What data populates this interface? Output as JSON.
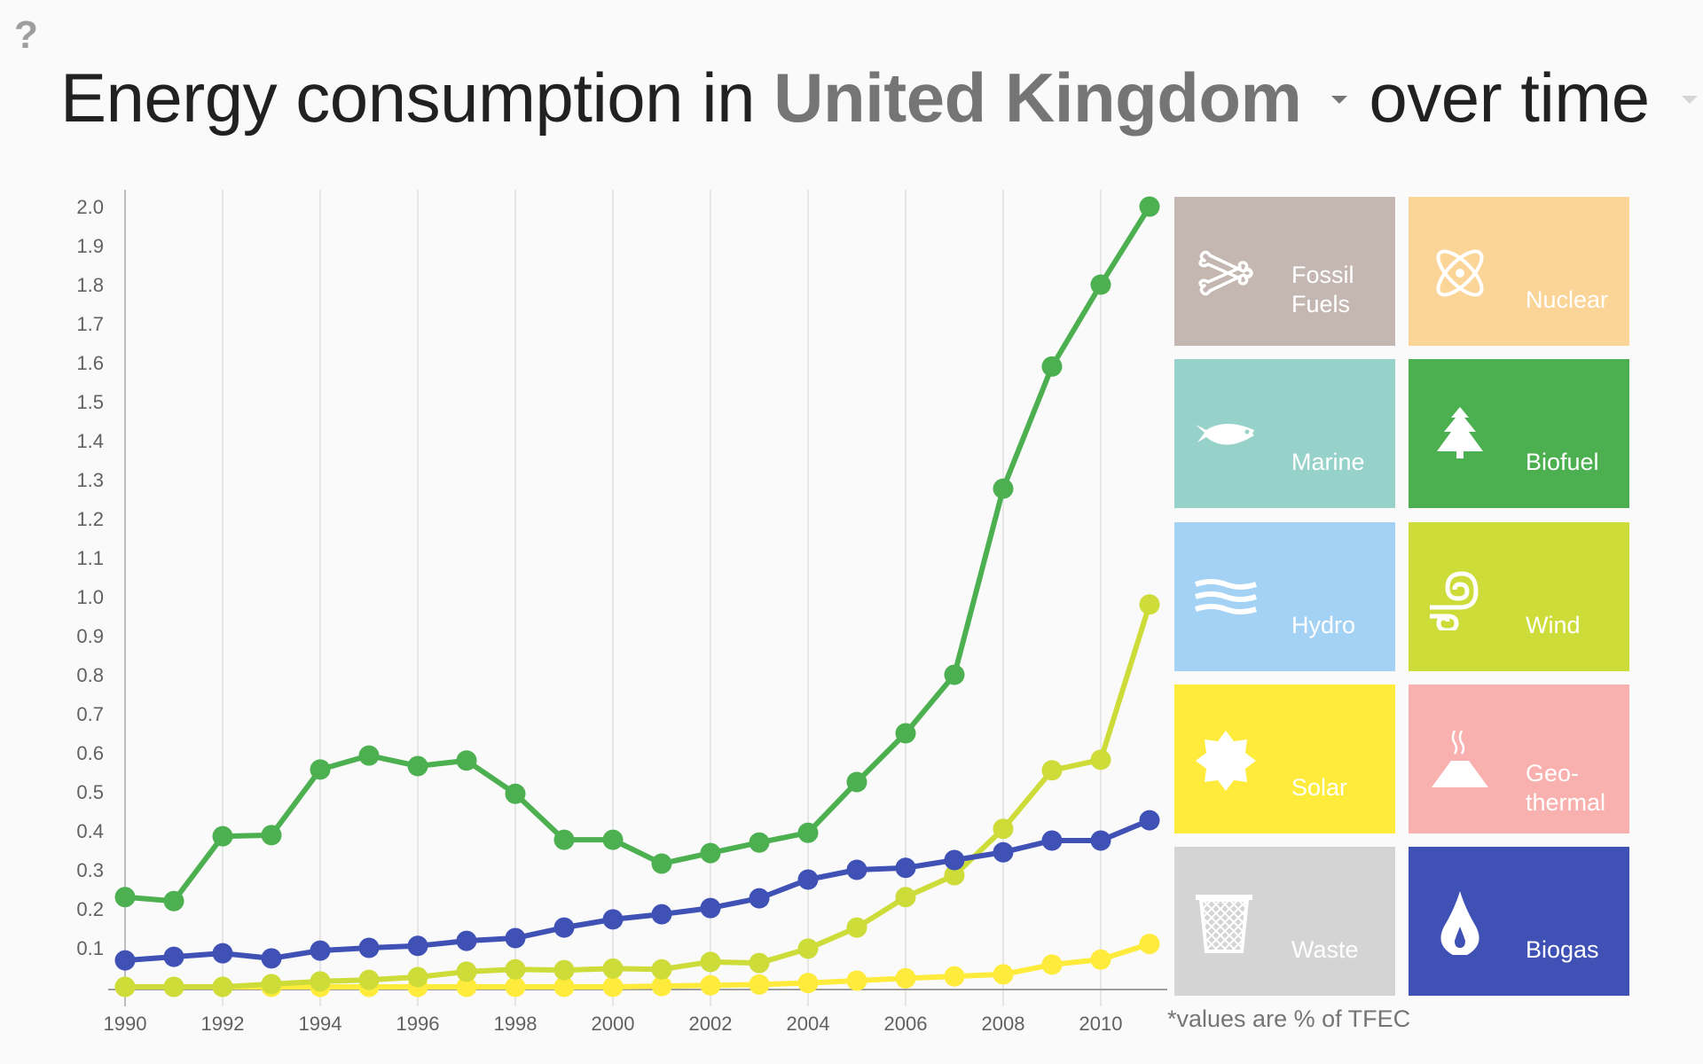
{
  "help_label": "?",
  "title": {
    "prefix": "Energy consumption in",
    "country": "United Kingdom",
    "suffix": "over time"
  },
  "footnote": "*values are % of TFEC",
  "tiles": [
    {
      "label": "Fossil\nFuels",
      "icon": "crossed-bones-icon",
      "color": "#c4b7b2",
      "active": false
    },
    {
      "label": "Nuclear",
      "icon": "atom-icon",
      "color": "#fbd497",
      "active": false
    },
    {
      "label": "Marine",
      "icon": "fish-icon",
      "color": "#96d2ca",
      "active": false
    },
    {
      "label": "Biofuel",
      "icon": "tree-icon",
      "color": "#4caf50",
      "active": true
    },
    {
      "label": "Hydro",
      "icon": "waves-icon",
      "color": "#a4d2f5",
      "active": false
    },
    {
      "label": "Wind",
      "icon": "wind-swirl-icon",
      "color": "#cddc39",
      "active": true
    },
    {
      "label": "Solar",
      "icon": "sun-icon",
      "color": "#ffeb3b",
      "active": true
    },
    {
      "label": "Geo-\nthermal",
      "icon": "volcano-icon",
      "color": "#f8b1ae",
      "active": false
    },
    {
      "label": "Waste",
      "icon": "wastebasket-icon",
      "color": "#d4d4d4",
      "active": false
    },
    {
      "label": "Biogas",
      "icon": "flame-drop-icon",
      "color": "#3f51b5",
      "active": true
    }
  ],
  "chart_data": {
    "type": "line",
    "title": "Energy consumption in United Kingdom over time",
    "xlabel": "",
    "ylabel": "% of TFEC",
    "x": [
      1990,
      1991,
      1992,
      1993,
      1994,
      1995,
      1996,
      1997,
      1998,
      1999,
      2000,
      2001,
      2002,
      2003,
      2004,
      2005,
      2006,
      2007,
      2008,
      2009,
      2010,
      2011
    ],
    "xticks": [
      "1990",
      "1992",
      "1994",
      "1996",
      "1998",
      "2000",
      "2002",
      "2004",
      "2006",
      "2008",
      "2010"
    ],
    "yticks": [
      "0.1",
      "0.2",
      "0.3",
      "0.4",
      "0.5",
      "0.6",
      "0.7",
      "0.8",
      "0.9",
      "1.0",
      "1.1",
      "1.2",
      "1.3",
      "1.4",
      "1.5",
      "1.6",
      "1.7",
      "1.8",
      "1.9",
      "2.0"
    ],
    "ylim": [
      0,
      2.0
    ],
    "xlim": [
      1990,
      2011
    ],
    "grid": "vertical",
    "legend": "right (tiles)",
    "series": [
      {
        "name": "Solar",
        "color": "#ffeb3b",
        "values": [
          0.0,
          0.0,
          0.0,
          0.0,
          0.0,
          0.0,
          0.0,
          0.0,
          0.0,
          0.0,
          0.0,
          0.002,
          0.004,
          0.006,
          0.01,
          0.016,
          0.022,
          0.027,
          0.032,
          0.057,
          0.07,
          0.11
        ]
      },
      {
        "name": "Wind",
        "color": "#cddc39",
        "values": [
          0.0,
          0.0,
          0.0,
          0.007,
          0.014,
          0.018,
          0.025,
          0.039,
          0.045,
          0.043,
          0.047,
          0.045,
          0.064,
          0.061,
          0.098,
          0.152,
          0.23,
          0.286,
          0.405,
          0.555,
          0.582,
          0.98
        ]
      },
      {
        "name": "Biogas",
        "color": "#3f51b5",
        "values": [
          0.068,
          0.077,
          0.086,
          0.073,
          0.093,
          0.1,
          0.105,
          0.118,
          0.125,
          0.152,
          0.173,
          0.186,
          0.202,
          0.227,
          0.275,
          0.3,
          0.305,
          0.325,
          0.345,
          0.375,
          0.375,
          0.427
        ]
      },
      {
        "name": "Biofuel",
        "color": "#4caf50",
        "values": [
          0.23,
          0.22,
          0.386,
          0.389,
          0.557,
          0.593,
          0.566,
          0.58,
          0.495,
          0.377,
          0.377,
          0.316,
          0.343,
          0.37,
          0.395,
          0.525,
          0.65,
          0.8,
          1.277,
          1.59,
          1.8,
          2.0
        ]
      }
    ]
  }
}
